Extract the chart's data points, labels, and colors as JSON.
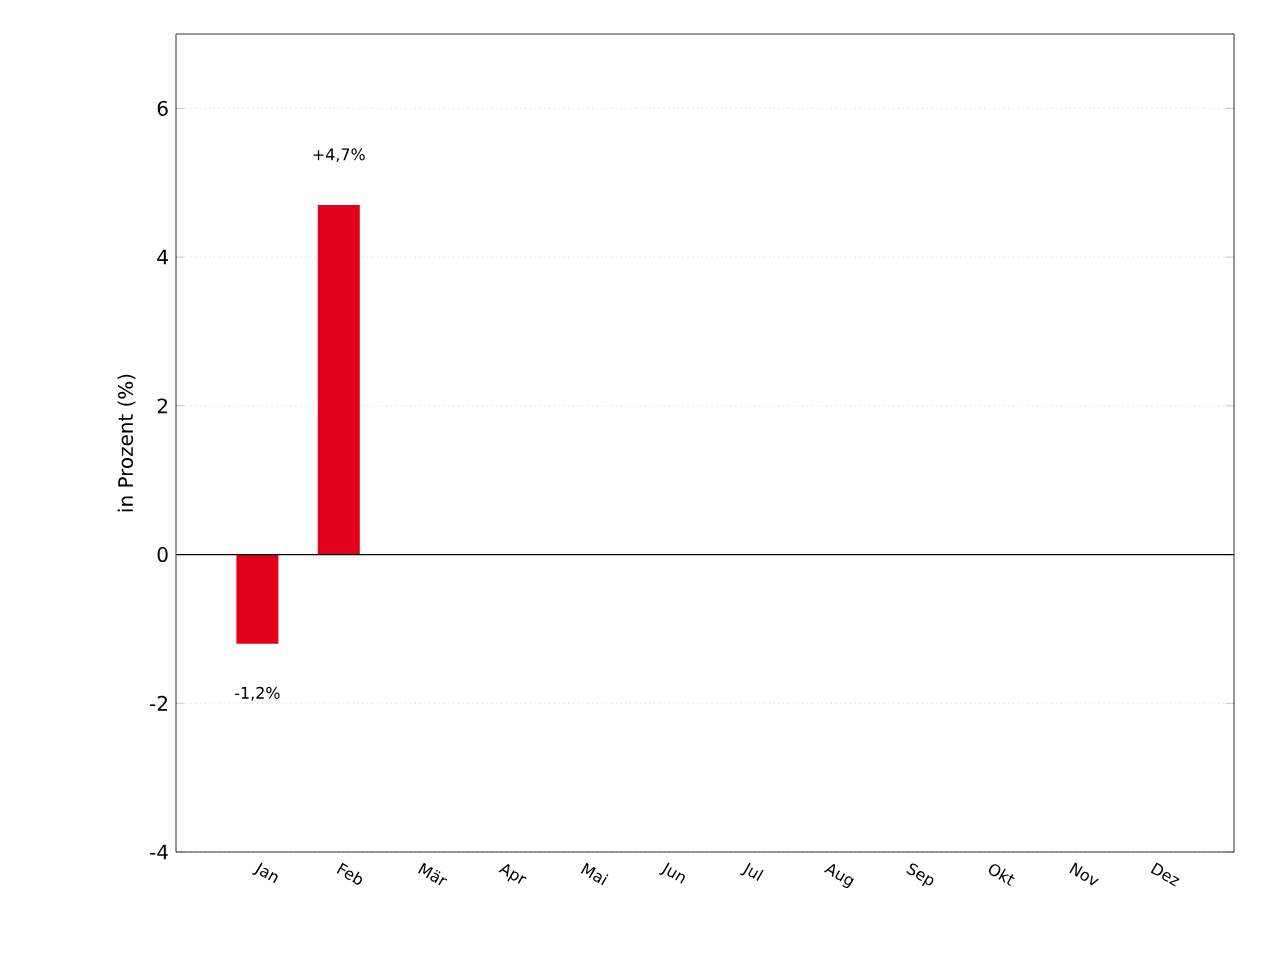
{
  "chart_data": {
    "type": "bar",
    "ylabel": "in Prozent (%)",
    "categories": [
      "Jan",
      "Feb",
      "Mär",
      "Apr",
      "Mai",
      "Jun",
      "Jul",
      "Aug",
      "Sep",
      "Okt",
      "Nov",
      "Dez"
    ],
    "values": [
      -1.2,
      4.7,
      null,
      null,
      null,
      null,
      null,
      null,
      null,
      null,
      null,
      null
    ],
    "value_labels": [
      "-1,2%",
      "+4,7%",
      null,
      null,
      null,
      null,
      null,
      null,
      null,
      null,
      null,
      null
    ],
    "color": "#e2001a",
    "ylim": [
      -4,
      7
    ],
    "yticks": [
      -4,
      -2,
      0,
      2,
      4,
      6
    ],
    "ref_lines": [
      {
        "axis": "y",
        "value": 0,
        "color": "#000000"
      }
    ],
    "grid": "y"
  }
}
